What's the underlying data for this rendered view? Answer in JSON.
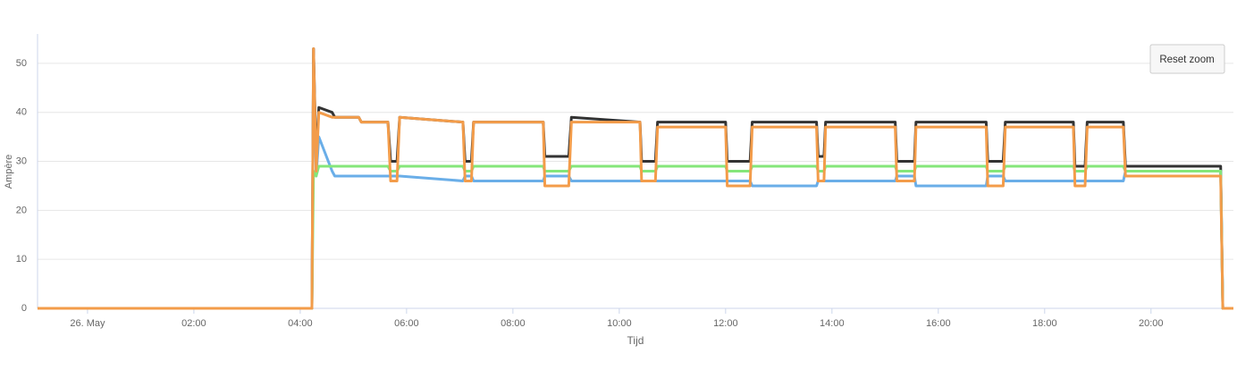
{
  "chart_data": {
    "type": "line",
    "y_label": "Ampère",
    "x_label": "Tijd",
    "x": [
      -0.94,
      4.22,
      4.25,
      4.3,
      4.35,
      4.6,
      4.65,
      5.1,
      5.15,
      5.65,
      5.7,
      5.82,
      5.87,
      7.06,
      7.1,
      7.22,
      7.26,
      8.57,
      8.6,
      9.05,
      9.1,
      10.39,
      10.42,
      10.68,
      10.72,
      12.0,
      12.03,
      12.46,
      12.5,
      13.71,
      13.74,
      13.85,
      13.88,
      15.19,
      15.22,
      15.55,
      15.58,
      16.9,
      16.93,
      17.22,
      17.26,
      18.54,
      18.57,
      18.76,
      18.8,
      19.48,
      19.52,
      21.31,
      21.35,
      21.55
    ],
    "series": [
      {
        "color": "#333333",
        "values": [
          0,
          0,
          53,
          30,
          41,
          40,
          39,
          39,
          38,
          38,
          30,
          30,
          39,
          38,
          30,
          30,
          38,
          38,
          31,
          31,
          39,
          38,
          30,
          30,
          38,
          38,
          30,
          30,
          38,
          38,
          31,
          31,
          38,
          38,
          30,
          30,
          38,
          38,
          30,
          30,
          38,
          38,
          29,
          29,
          38,
          38,
          29,
          29,
          0,
          0
        ]
      },
      {
        "color": "#6aaee8",
        "values": [
          0,
          0,
          50,
          27,
          35,
          28,
          27,
          27,
          27,
          27,
          27,
          27,
          27,
          26,
          27,
          27,
          26,
          26,
          27,
          27,
          26,
          26,
          26,
          26,
          26,
          26,
          26,
          26,
          25,
          25,
          26,
          26,
          26,
          26,
          27,
          27,
          25,
          25,
          27,
          27,
          26,
          26,
          26,
          26,
          26,
          26,
          28,
          28,
          0,
          0
        ]
      },
      {
        "color": "#85e67a",
        "values": [
          0,
          0,
          28,
          27,
          29,
          29,
          29,
          29,
          29,
          29,
          28,
          28,
          29,
          29,
          28,
          28,
          29,
          29,
          28,
          28,
          29,
          29,
          28,
          28,
          29,
          29,
          28,
          28,
          29,
          29,
          28,
          28,
          29,
          29,
          28,
          28,
          29,
          29,
          28,
          28,
          29,
          29,
          28,
          28,
          29,
          29,
          28,
          28,
          0,
          0
        ]
      },
      {
        "color": "#f39c4a",
        "values": [
          0,
          0,
          53,
          28,
          40,
          39,
          39,
          39,
          38,
          38,
          26,
          26,
          39,
          38,
          26,
          26,
          38,
          38,
          25,
          25,
          38,
          38,
          26,
          26,
          37,
          37,
          25,
          25,
          37,
          37,
          26,
          26,
          37,
          37,
          26,
          26,
          37,
          37,
          25,
          25,
          37,
          37,
          25,
          25,
          37,
          37,
          27,
          27,
          0,
          0
        ]
      }
    ],
    "xlim": [
      -0.94,
      21.55
    ],
    "xticks": [
      {
        "value": 0,
        "label": "26. May"
      },
      {
        "value": 2,
        "label": "02:00"
      },
      {
        "value": 4,
        "label": "04:00"
      },
      {
        "value": 6,
        "label": "06:00"
      },
      {
        "value": 8,
        "label": "08:00"
      },
      {
        "value": 10,
        "label": "10:00"
      },
      {
        "value": 12,
        "label": "12:00"
      },
      {
        "value": 14,
        "label": "14:00"
      },
      {
        "value": 16,
        "label": "16:00"
      },
      {
        "value": 18,
        "label": "18:00"
      },
      {
        "value": 20,
        "label": "20:00"
      }
    ],
    "ylim": [
      0,
      56
    ],
    "yticks": [
      0,
      10,
      20,
      30,
      40,
      50
    ],
    "grid": true
  },
  "reset_button": "Reset zoom"
}
